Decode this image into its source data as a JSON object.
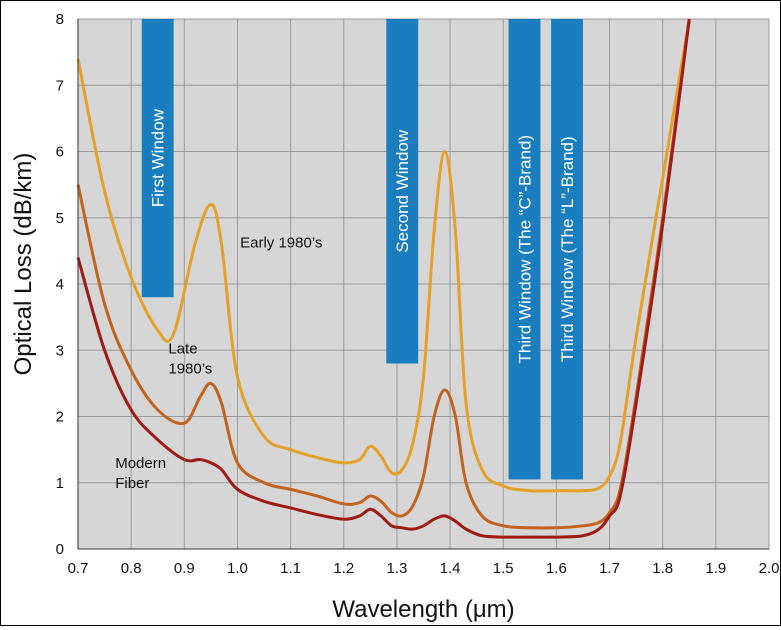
{
  "chart_data": {
    "type": "line",
    "xlabel": "Wavelength (μm)",
    "ylabel": "Optical Loss (dB/km)",
    "xlim": [
      0.7,
      2.0
    ],
    "ylim": [
      0,
      8
    ],
    "xticks": [
      "0.7",
      "0.8",
      "0.9",
      "1.0",
      "1.1",
      "1.2",
      "1.3",
      "1.4",
      "1.5",
      "1.6",
      "1.7",
      "1.8",
      "1.9",
      "2.0"
    ],
    "yticks": [
      "0",
      "1",
      "2",
      "3",
      "4",
      "5",
      "6",
      "7",
      "8"
    ],
    "grid": true,
    "series": [
      {
        "name": "Early 1980's",
        "color": "#E5A02A",
        "x": [
          0.7,
          0.75,
          0.8,
          0.85,
          0.88,
          0.92,
          0.95,
          0.97,
          1.0,
          1.05,
          1.1,
          1.15,
          1.2,
          1.23,
          1.25,
          1.27,
          1.29,
          1.31,
          1.33,
          1.35,
          1.37,
          1.39,
          1.41,
          1.43,
          1.46,
          1.5,
          1.55,
          1.6,
          1.65,
          1.68,
          1.7,
          1.72,
          1.75,
          1.8,
          1.85
        ],
        "y": [
          7.4,
          5.4,
          4.1,
          3.3,
          3.25,
          4.6,
          5.2,
          4.6,
          2.6,
          1.7,
          1.5,
          1.38,
          1.3,
          1.35,
          1.55,
          1.4,
          1.15,
          1.2,
          1.6,
          2.6,
          4.8,
          6.0,
          4.8,
          2.2,
          1.2,
          0.95,
          0.88,
          0.88,
          0.88,
          0.92,
          1.1,
          1.6,
          3.2,
          5.6,
          8.0
        ]
      },
      {
        "name": "Late 1980's",
        "color": "#C2641F",
        "x": [
          0.7,
          0.75,
          0.8,
          0.85,
          0.9,
          0.93,
          0.95,
          0.97,
          1.0,
          1.05,
          1.1,
          1.15,
          1.2,
          1.23,
          1.25,
          1.27,
          1.29,
          1.31,
          1.33,
          1.35,
          1.37,
          1.39,
          1.41,
          1.43,
          1.46,
          1.5,
          1.55,
          1.6,
          1.65,
          1.68,
          1.7,
          1.72,
          1.75,
          1.8,
          1.85
        ],
        "y": [
          5.5,
          3.7,
          2.7,
          2.1,
          1.9,
          2.3,
          2.5,
          2.2,
          1.3,
          1.0,
          0.9,
          0.8,
          0.68,
          0.7,
          0.8,
          0.72,
          0.55,
          0.5,
          0.65,
          1.1,
          2.0,
          2.4,
          2.0,
          1.0,
          0.5,
          0.35,
          0.32,
          0.32,
          0.35,
          0.4,
          0.55,
          0.9,
          2.3,
          5.0,
          8.0
        ]
      },
      {
        "name": "Modern Fiber",
        "color": "#9E1B16",
        "x": [
          0.7,
          0.75,
          0.8,
          0.85,
          0.9,
          0.93,
          0.95,
          0.97,
          1.0,
          1.05,
          1.1,
          1.15,
          1.2,
          1.23,
          1.25,
          1.27,
          1.29,
          1.31,
          1.33,
          1.35,
          1.37,
          1.39,
          1.41,
          1.43,
          1.46,
          1.5,
          1.55,
          1.6,
          1.65,
          1.68,
          1.7,
          1.72,
          1.75,
          1.8,
          1.85
        ],
        "y": [
          4.4,
          3.0,
          2.1,
          1.65,
          1.35,
          1.35,
          1.3,
          1.2,
          0.9,
          0.72,
          0.62,
          0.52,
          0.45,
          0.5,
          0.6,
          0.5,
          0.35,
          0.32,
          0.3,
          0.35,
          0.45,
          0.5,
          0.42,
          0.3,
          0.2,
          0.18,
          0.18,
          0.18,
          0.2,
          0.3,
          0.5,
          0.8,
          2.2,
          4.9,
          8.0
        ]
      }
    ],
    "bands": [
      {
        "label": "First Window",
        "x0": 0.82,
        "x1": 0.88,
        "y0": 3.8,
        "y1": 8.0
      },
      {
        "label": "Second Window",
        "x0": 1.28,
        "x1": 1.34,
        "y0": 2.8,
        "y1": 8.0
      },
      {
        "label": "Third Window (The “C”-Brand)",
        "x0": 1.51,
        "x1": 1.57,
        "y0": 1.05,
        "y1": 8.0
      },
      {
        "label": "Third Window (The “L”-Brand)",
        "x0": 1.59,
        "x1": 1.65,
        "y0": 1.05,
        "y1": 8.0
      }
    ],
    "annotations": [
      {
        "lines": [
          "Early 1980’s"
        ],
        "x": 1.005,
        "y": 4.55
      },
      {
        "lines": [
          "Late",
          "1980’s"
        ],
        "x": 0.87,
        "y": 2.95
      },
      {
        "lines": [
          "Modern",
          "Fiber"
        ],
        "x": 0.77,
        "y": 1.22
      }
    ]
  }
}
